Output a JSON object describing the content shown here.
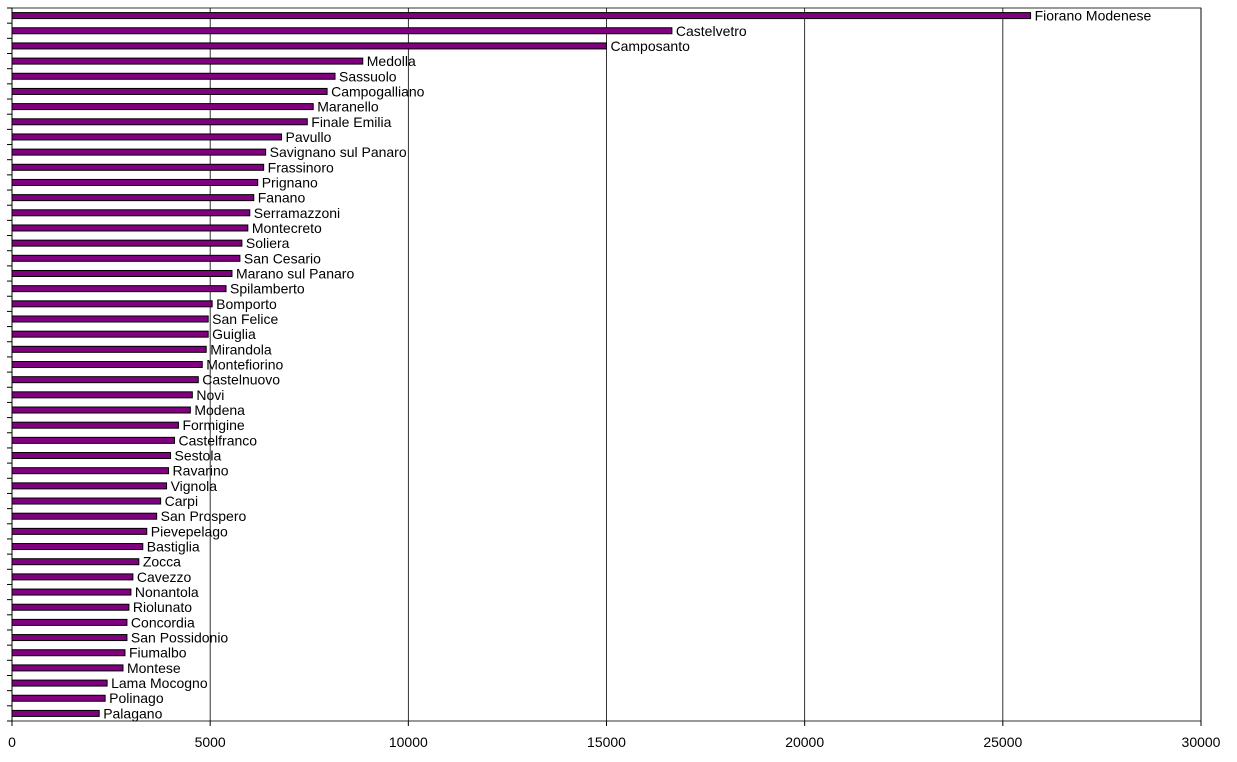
{
  "chart_data": {
    "type": "bar",
    "orientation": "horizontal",
    "title": "",
    "xlabel": "",
    "ylabel": "",
    "xlim": [
      0,
      30000
    ],
    "xticks": [
      "0",
      "5000",
      "10000",
      "15000",
      "20000",
      "25000",
      "30000"
    ],
    "grid": "vertical",
    "legend": "none",
    "colors": {
      "bar_fill": "#800080",
      "bar_stroke": "#000000",
      "grid": "#000000"
    },
    "categories": [
      "Fiorano Modenese",
      "Castelvetro",
      "Camposanto",
      "Medolla",
      "Sassuolo",
      "Campogalliano",
      "Maranello",
      "Finale Emilia",
      "Pavullo",
      "Savignano sul Panaro",
      "Frassinoro",
      "Prignano",
      "Fanano",
      "Serramazzoni",
      "Montecreto",
      "Soliera",
      "San Cesario",
      "Marano sul Panaro",
      "Spilamberto",
      "Bomporto",
      "San Felice",
      "Guiglia",
      "Mirandola",
      "Montefiorino",
      "Castelnuovo",
      "Novi",
      "Modena",
      "Formigine",
      "Castelfranco",
      "Sestola",
      "Ravarino",
      "Vignola",
      "Carpi",
      "San Prospero",
      "Pievepelago",
      "Bastiglia",
      "Zocca",
      "Cavezzo",
      "Nonantola",
      "Riolunato",
      "Concordia",
      "San Possidonio",
      "Fiumalbo",
      "Montese",
      "Lama Mocogno",
      "Polinago",
      "Palagano"
    ],
    "values": [
      25700,
      16650,
      15000,
      8850,
      8150,
      7950,
      7600,
      7450,
      6800,
      6400,
      6350,
      6200,
      6100,
      6000,
      5950,
      5800,
      5750,
      5550,
      5400,
      5050,
      4950,
      4950,
      4900,
      4800,
      4700,
      4550,
      4500,
      4200,
      4100,
      4000,
      3950,
      3900,
      3750,
      3650,
      3400,
      3300,
      3200,
      3050,
      3000,
      2950,
      2900,
      2900,
      2850,
      2800,
      2400,
      2350,
      2200
    ]
  }
}
